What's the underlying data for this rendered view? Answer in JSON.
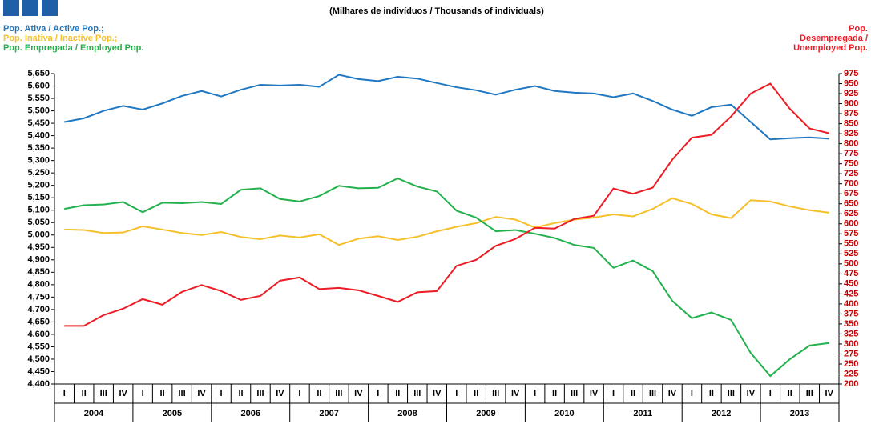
{
  "chart_data": {
    "type": "line",
    "subtitle": "(Milhares de indivíduos  / Thousands of individuals)",
    "categories": [
      "I",
      "II",
      "III",
      "IV",
      "I",
      "II",
      "III",
      "IV",
      "I",
      "II",
      "III",
      "IV",
      "I",
      "II",
      "III",
      "IV",
      "I",
      "II",
      "III",
      "IV",
      "I",
      "II",
      "III",
      "IV",
      "I",
      "II",
      "III",
      "IV",
      "I",
      "II",
      "III",
      "IV",
      "I",
      "II",
      "III",
      "IV",
      "I",
      "II",
      "III",
      "IV"
    ],
    "years": [
      "2004",
      "2005",
      "2006",
      "2007",
      "2008",
      "2009",
      "2010",
      "2011",
      "2012",
      "2013"
    ],
    "series": [
      {
        "name": "Pop. Ativa / Active Pop.;",
        "color": "#1f78c1",
        "axis": "y",
        "values": [
          5455,
          5470,
          5500,
          5520,
          5505,
          5530,
          5560,
          5580,
          5558,
          5585,
          5605,
          5602,
          5605,
          5597,
          5645,
          5628,
          5620,
          5637,
          5630,
          5612,
          5595,
          5583,
          5565,
          5585,
          5600,
          5580,
          5573,
          5570,
          5555,
          5570,
          5540,
          5505,
          5480,
          5515,
          5525,
          5455,
          5385,
          5390,
          5393,
          5388
        ]
      },
      {
        "name": "Pop. Inativa / Inactive Pop.;",
        "color": "#f5c02c",
        "axis": "y",
        "values": [
          5022,
          5020,
          5008,
          5010,
          5035,
          5022,
          5008,
          5000,
          5012,
          4992,
          4983,
          4998,
          4990,
          5003,
          4960,
          4985,
          4995,
          4980,
          4993,
          5015,
          5033,
          5048,
          5073,
          5062,
          5030,
          5048,
          5062,
          5070,
          5083,
          5075,
          5105,
          5148,
          5125,
          5083,
          5068,
          5140,
          5135,
          5115,
          5100,
          5090
        ]
      },
      {
        "name": "Pop. Empregada / Employed Pop.",
        "color": "#22b14c",
        "axis": "y",
        "values": [
          5105,
          5120,
          5123,
          5133,
          5092,
          5130,
          5128,
          5133,
          5125,
          5182,
          5188,
          5145,
          5135,
          5157,
          5198,
          5188,
          5190,
          5228,
          5195,
          5175,
          5098,
          5070,
          5015,
          5020,
          5005,
          4988,
          4960,
          4948,
          4868,
          4897,
          4855,
          4735,
          4665,
          4688,
          4658,
          4525,
          4432,
          4500,
          4555,
          4565
        ]
      },
      {
        "name": "Pop. Desempregada / Unemployed Pop.",
        "color": "#ed1c24",
        "axis": "y2",
        "values": [
          345,
          345,
          372,
          388,
          412,
          398,
          430,
          447,
          432,
          410,
          420,
          458,
          466,
          437,
          440,
          434,
          420,
          405,
          429,
          432,
          495,
          510,
          545,
          562,
          590,
          588,
          612,
          620,
          688,
          675,
          690,
          760,
          815,
          822,
          868,
          925,
          950,
          887,
          838,
          826
        ]
      }
    ],
    "ylim": [
      4400,
      5650
    ],
    "yticks": [
      {
        "value": 4400,
        "label": "4,400"
      },
      {
        "value": 4450,
        "label": "4,450"
      },
      {
        "value": 4500,
        "label": "4,500"
      },
      {
        "value": 4550,
        "label": "4,550"
      },
      {
        "value": 4600,
        "label": "4,600"
      },
      {
        "value": 4650,
        "label": "4,650"
      },
      {
        "value": 4700,
        "label": "4,700"
      },
      {
        "value": 4750,
        "label": "4,750"
      },
      {
        "value": 4800,
        "label": "4,800"
      },
      {
        "value": 4850,
        "label": "4,850"
      },
      {
        "value": 4900,
        "label": "4,900"
      },
      {
        "value": 4950,
        "label": "4,950"
      },
      {
        "value": 5000,
        "label": "5,000"
      },
      {
        "value": 5050,
        "label": "5,050"
      },
      {
        "value": 5100,
        "label": "5,100"
      },
      {
        "value": 5150,
        "label": "5,150"
      },
      {
        "value": 5200,
        "label": "5,200"
      },
      {
        "value": 5250,
        "label": "5,250"
      },
      {
        "value": 5300,
        "label": "5,300"
      },
      {
        "value": 5350,
        "label": "5,350"
      },
      {
        "value": 5400,
        "label": "5,400"
      },
      {
        "value": 5450,
        "label": "5,450"
      },
      {
        "value": 5500,
        "label": "5,500"
      },
      {
        "value": 5550,
        "label": "5,550"
      },
      {
        "value": 5600,
        "label": "5,600"
      },
      {
        "value": 5650,
        "label": "5,650"
      }
    ],
    "y2lim": [
      200,
      975
    ],
    "y2ticks": [
      200,
      225,
      250,
      275,
      300,
      325,
      350,
      375,
      400,
      425,
      450,
      475,
      500,
      525,
      550,
      575,
      600,
      625,
      650,
      675,
      700,
      725,
      750,
      775,
      800,
      825,
      850,
      875,
      900,
      925,
      950,
      975
    ]
  }
}
